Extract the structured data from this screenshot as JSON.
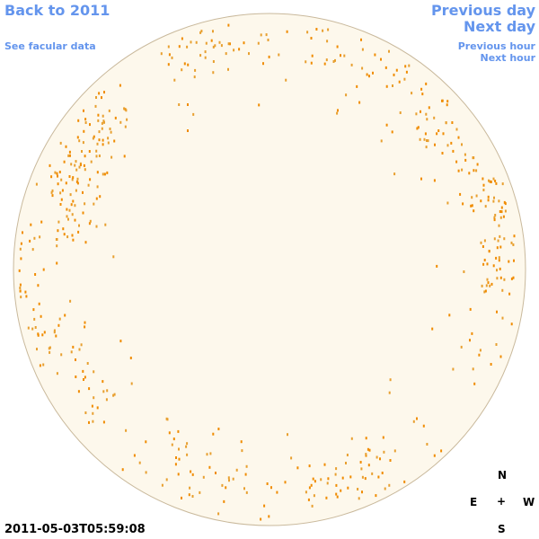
{
  "links": {
    "back": "Back to 2011",
    "facular": "See facular data",
    "previous_day": "Previous day",
    "next_day": "Next day",
    "previous_hour": "Previous hour",
    "next_hour": "Next hour"
  },
  "timestamp": "2011-05-03T05:59:08",
  "compass": {
    "north": "N",
    "east": "E",
    "center": "+",
    "west": "W",
    "south": "S"
  }
}
